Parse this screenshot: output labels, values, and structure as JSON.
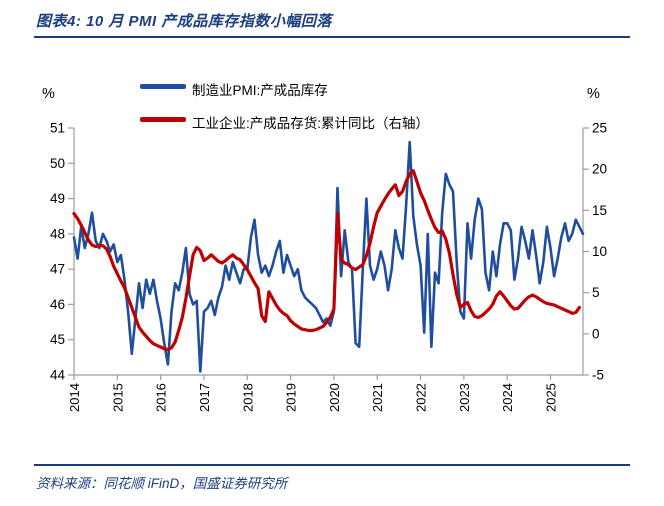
{
  "header": {
    "title": "图表4:  10 月 PMI 产成品库存指数小幅回落"
  },
  "footer": {
    "source": "资料来源：同花顺 iFinD，国盛证券研究所"
  },
  "colors": {
    "accent_blue": "#1B3E80",
    "pmi_line": "#1F4E9E",
    "inventory_line": "#C00000",
    "axis_gray": "#9c9c9c",
    "tick_text": "#000000"
  },
  "legend": {
    "items": [
      {
        "label": "制造业PMI:产成品库存",
        "color": "#1F4E9E"
      },
      {
        "label": "工业企业:产成品存货:累计同比（右轴）",
        "color": "#C00000"
      }
    ]
  },
  "axes": {
    "left_unit": "%",
    "right_unit": "%"
  },
  "chart_data": {
    "type": "line",
    "title": "10 月 PMI 产成品库存指数小幅回落",
    "x_start": "2014-01",
    "x_freq": "monthly",
    "x_tick_labels": [
      "2014",
      "2015",
      "2016",
      "2017",
      "2018",
      "2019",
      "2020",
      "2021",
      "2022",
      "2023",
      "2024",
      "2025"
    ],
    "left_axis": {
      "label": "%",
      "range": [
        44,
        51
      ],
      "ticks": [
        44,
        45,
        46,
        47,
        48,
        49,
        50,
        51
      ]
    },
    "right_axis": {
      "label": "%",
      "range": [
        -5,
        25
      ],
      "ticks": [
        -5,
        0,
        5,
        10,
        15,
        20,
        25
      ]
    },
    "grid": false,
    "legend_position": "top",
    "series": [
      {
        "name": "制造业PMI:产成品库存",
        "axis": "left",
        "color": "#1F4E9E",
        "values": [
          47.9,
          47.3,
          48.2,
          47.6,
          48.0,
          48.6,
          47.8,
          47.6,
          48.0,
          47.8,
          47.5,
          47.7,
          47.2,
          47.4,
          46.7,
          45.8,
          44.6,
          45.6,
          46.6,
          45.9,
          46.7,
          46.3,
          46.7,
          46.1,
          45.6,
          44.9,
          44.3,
          45.8,
          46.6,
          46.4,
          46.9,
          47.6,
          46.3,
          46.0,
          46.1,
          44.1,
          45.8,
          45.9,
          46.1,
          45.7,
          46.2,
          46.5,
          47.1,
          46.7,
          47.2,
          46.9,
          46.6,
          47.0,
          47.0,
          47.9,
          48.4,
          47.4,
          46.9,
          47.1,
          46.8,
          47.1,
          47.5,
          47.8,
          46.9,
          47.4,
          47.1,
          46.8,
          47.0,
          46.4,
          46.2,
          46.1,
          46.0,
          45.9,
          45.7,
          45.5,
          45.6,
          45.4,
          45.8,
          49.3,
          46.8,
          48.1,
          47.2,
          47.0,
          44.9,
          44.8,
          47.0,
          49.0,
          47.1,
          46.7,
          47.0,
          47.5,
          47.1,
          46.4,
          47.0,
          48.1,
          47.6,
          47.3,
          48.8,
          50.6,
          48.5,
          47.7,
          47.1,
          45.2,
          48.0,
          44.8,
          46.9,
          46.6,
          48.6,
          49.7,
          49.4,
          49.2,
          47.2,
          45.8,
          45.6,
          48.3,
          47.3,
          48.4,
          49.0,
          48.7,
          46.9,
          46.4,
          47.5,
          46.8,
          47.7,
          48.3,
          48.3,
          48.1,
          46.7,
          47.3,
          48.2,
          47.8,
          47.3,
          48.1,
          47.4,
          46.6,
          47.2,
          48.2,
          47.6,
          46.8,
          47.3,
          47.9,
          48.3,
          47.8,
          48.0,
          48.4,
          48.2,
          48.0
        ]
      },
      {
        "name": "工业企业:产成品存货:累计同比（右轴）",
        "axis": "right",
        "color": "#C00000",
        "values": [
          14.6,
          14.0,
          13.2,
          12.3,
          11.4,
          10.8,
          10.6,
          10.7,
          10.7,
          10.3,
          9.4,
          8.2,
          7.3,
          6.4,
          5.6,
          4.4,
          3.2,
          2.0,
          0.8,
          0.2,
          -0.3,
          -0.8,
          -1.2,
          -1.4,
          -1.6,
          -1.8,
          -1.9,
          -1.7,
          -1.0,
          0.4,
          2.0,
          4.3,
          7.0,
          9.6,
          10.5,
          10.1,
          8.9,
          9.2,
          9.6,
          9.2,
          8.8,
          8.6,
          8.9,
          9.3,
          9.6,
          9.2,
          9.0,
          8.4,
          7.8,
          7.0,
          6.2,
          5.5,
          2.2,
          1.5,
          5.1,
          4.3,
          3.5,
          2.9,
          2.5,
          2.2,
          1.6,
          1.2,
          0.9,
          0.6,
          0.5,
          0.4,
          0.4,
          0.5,
          0.7,
          0.9,
          1.4,
          2.0,
          3.0,
          14.6,
          9.0,
          8.6,
          8.4,
          8.0,
          7.8,
          8.1,
          8.4,
          9.5,
          11.0,
          13.0,
          14.7,
          15.5,
          16.3,
          17.0,
          17.6,
          18.1,
          16.8,
          17.3,
          18.5,
          19.4,
          19.8,
          18.5,
          17.1,
          16.2,
          15.0,
          13.9,
          12.9,
          12.3,
          12.5,
          11.5,
          9.8,
          7.2,
          4.8,
          3.2,
          3.6,
          3.8,
          2.8,
          2.1,
          2.0,
          2.2,
          2.6,
          3.0,
          3.6,
          4.6,
          5.1,
          4.6,
          4.0,
          3.4,
          3.0,
          3.1,
          3.6,
          4.1,
          4.5,
          4.7,
          4.5,
          4.2,
          3.9,
          3.7,
          3.6,
          3.5,
          3.3,
          3.1,
          2.9,
          2.7,
          2.5,
          2.6,
          3.2
        ]
      }
    ]
  }
}
